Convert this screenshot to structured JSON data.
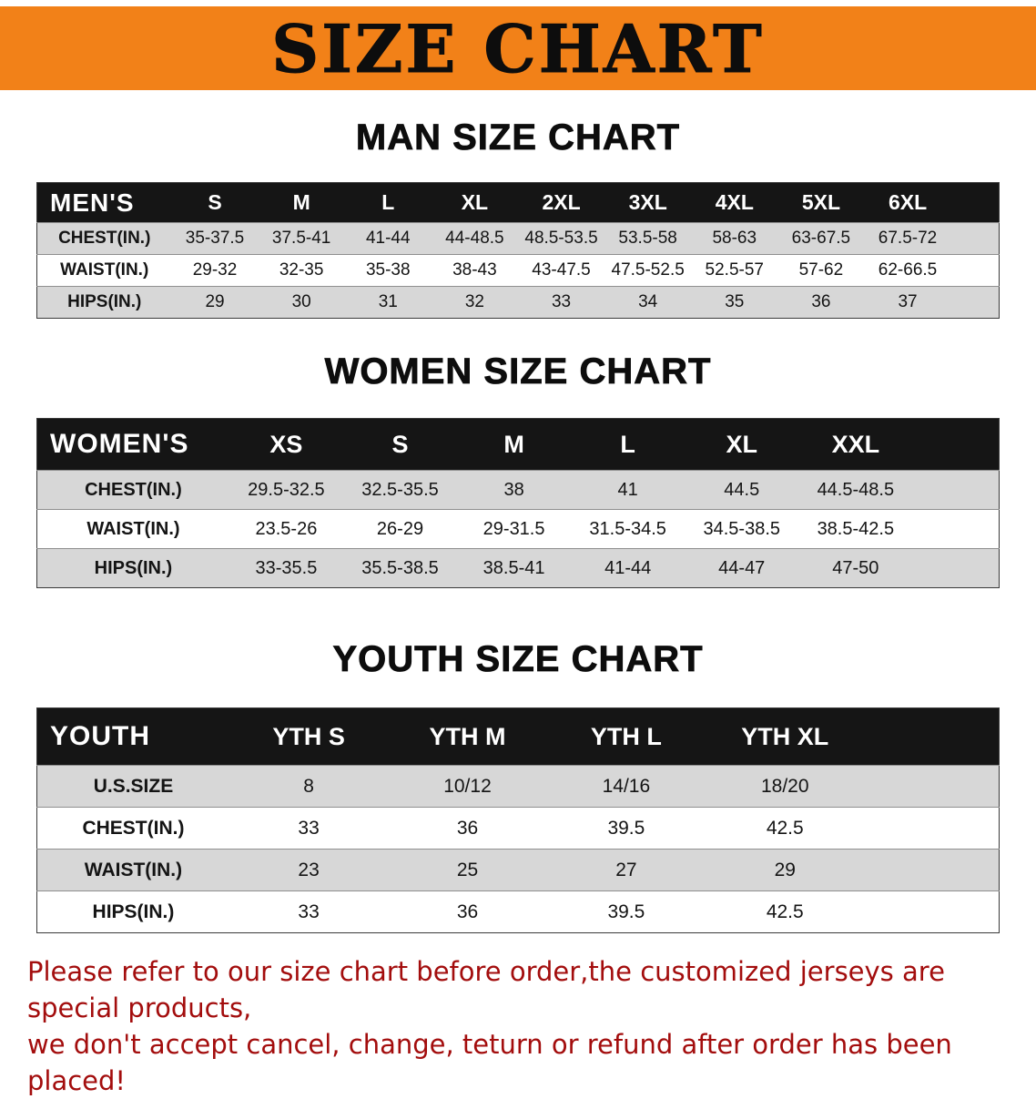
{
  "banner": {
    "title": "SIZE CHART"
  },
  "colors": {
    "banner_bg": "#f28118",
    "table_header_bg": "#151515",
    "row_alt_bg": "#d7d7d7",
    "heading_text": "#0d0d0d",
    "note_text": "#a30d0d"
  },
  "chart_data": [
    {
      "type": "table",
      "title": "MAN SIZE CHART",
      "columns": [
        "MEN'S",
        "S",
        "M",
        "L",
        "XL",
        "2XL",
        "3XL",
        "4XL",
        "5XL",
        "6XL"
      ],
      "rows": [
        [
          "CHEST(IN.)",
          "35-37.5",
          "37.5-41",
          "41-44",
          "44-48.5",
          "48.5-53.5",
          "53.5-58",
          "58-63",
          "63-67.5",
          "67.5-72"
        ],
        [
          "WAIST(IN.)",
          "29-32",
          "32-35",
          "35-38",
          "38-43",
          "43-47.5",
          "47.5-52.5",
          "52.5-57",
          "57-62",
          "62-66.5"
        ],
        [
          "HIPS(IN.)",
          "29",
          "30",
          "31",
          "32",
          "33",
          "34",
          "35",
          "36",
          "37"
        ]
      ]
    },
    {
      "type": "table",
      "title": "WOMEN SIZE CHART",
      "columns": [
        "WOMEN'S",
        "XS",
        "S",
        "M",
        "L",
        "XL",
        "XXL"
      ],
      "rows": [
        [
          "CHEST(IN.)",
          "29.5-32.5",
          "32.5-35.5",
          "38",
          "41",
          "44.5",
          "44.5-48.5"
        ],
        [
          "WAIST(IN.)",
          "23.5-26",
          "26-29",
          "29-31.5",
          "31.5-34.5",
          "34.5-38.5",
          "38.5-42.5"
        ],
        [
          "HIPS(IN.)",
          "33-35.5",
          "35.5-38.5",
          "38.5-41",
          "41-44",
          "44-47",
          "47-50"
        ]
      ]
    },
    {
      "type": "table",
      "title": "YOUTH SIZE CHART",
      "columns": [
        "YOUTH",
        "YTH S",
        "YTH M",
        "YTH L",
        "YTH XL"
      ],
      "rows": [
        [
          "U.S.SIZE",
          "8",
          "10/12",
          "14/16",
          "18/20"
        ],
        [
          "CHEST(IN.)",
          "33",
          "36",
          "39.5",
          "42.5"
        ],
        [
          "WAIST(IN.)",
          "23",
          "25",
          "27",
          "29"
        ],
        [
          "HIPS(IN.)",
          "33",
          "36",
          "39.5",
          "42.5"
        ]
      ]
    }
  ],
  "note": {
    "lines": [
      "Please refer to our size chart before order,the customized jerseys are special products,",
      "we don't accept cancel, change, teturn or refund after order has been placed!"
    ]
  }
}
